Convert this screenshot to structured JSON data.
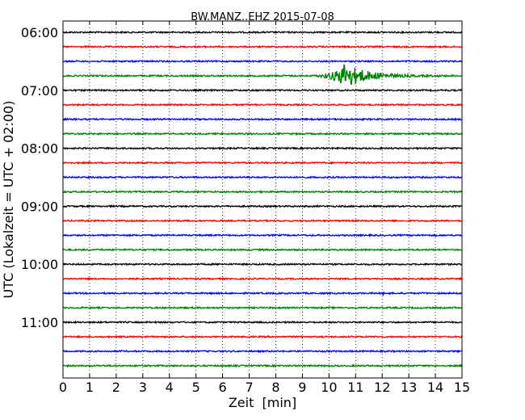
{
  "chart_data": {
    "type": "line",
    "title": "BW.MANZ..EHZ 2015-07-08",
    "xlabel": "Zeit  [min]",
    "ylabel": "UTC (Lokalzeit = UTC + 02:00)",
    "xlim": [
      0,
      15
    ],
    "x_ticks": [
      "0",
      "1",
      "2",
      "3",
      "4",
      "5",
      "6",
      "7",
      "8",
      "9",
      "10",
      "11",
      "12",
      "13",
      "14",
      "15"
    ],
    "y_ticks": [
      "06:00",
      "07:00",
      "08:00",
      "09:00",
      "10:00",
      "11:00"
    ],
    "grid": "x",
    "trace_interval_min": 15,
    "start_time": "06:00",
    "trace_colors": [
      "#000000",
      "#ff0000",
      "#0000ff",
      "#008000"
    ],
    "series": [
      {
        "start": "06:00",
        "color": "#000000",
        "amplitude": 1
      },
      {
        "start": "06:15",
        "color": "#ff0000",
        "amplitude": 1
      },
      {
        "start": "06:30",
        "color": "#0000ff",
        "amplitude": 1
      },
      {
        "start": "06:45",
        "color": "#008000",
        "amplitude": 1,
        "event": {
          "start_min": 9.3,
          "peak_min": 10.5,
          "end_min": 15.0,
          "peak_amplitude": 17
        }
      },
      {
        "start": "07:00",
        "color": "#000000",
        "amplitude": 1
      },
      {
        "start": "07:15",
        "color": "#ff0000",
        "amplitude": 1
      },
      {
        "start": "07:30",
        "color": "#0000ff",
        "amplitude": 1
      },
      {
        "start": "07:45",
        "color": "#008000",
        "amplitude": 1
      },
      {
        "start": "08:00",
        "color": "#000000",
        "amplitude": 1
      },
      {
        "start": "08:15",
        "color": "#ff0000",
        "amplitude": 1
      },
      {
        "start": "08:30",
        "color": "#0000ff",
        "amplitude": 1
      },
      {
        "start": "08:45",
        "color": "#008000",
        "amplitude": 1
      },
      {
        "start": "09:00",
        "color": "#000000",
        "amplitude": 1
      },
      {
        "start": "09:15",
        "color": "#ff0000",
        "amplitude": 1
      },
      {
        "start": "09:30",
        "color": "#0000ff",
        "amplitude": 1
      },
      {
        "start": "09:45",
        "color": "#008000",
        "amplitude": 1
      },
      {
        "start": "10:00",
        "color": "#000000",
        "amplitude": 1
      },
      {
        "start": "10:15",
        "color": "#ff0000",
        "amplitude": 1
      },
      {
        "start": "10:30",
        "color": "#0000ff",
        "amplitude": 1,
        "event": {
          "start_min": 12.0,
          "peak_min": 12.05,
          "end_min": 12.15,
          "peak_amplitude": 3
        }
      },
      {
        "start": "10:45",
        "color": "#008000",
        "amplitude": 1
      },
      {
        "start": "11:00",
        "color": "#000000",
        "amplitude": 1
      },
      {
        "start": "11:15",
        "color": "#ff0000",
        "amplitude": 1
      },
      {
        "start": "11:30",
        "color": "#0000ff",
        "amplitude": 1
      },
      {
        "start": "11:45",
        "color": "#008000",
        "amplitude": 1
      }
    ]
  }
}
